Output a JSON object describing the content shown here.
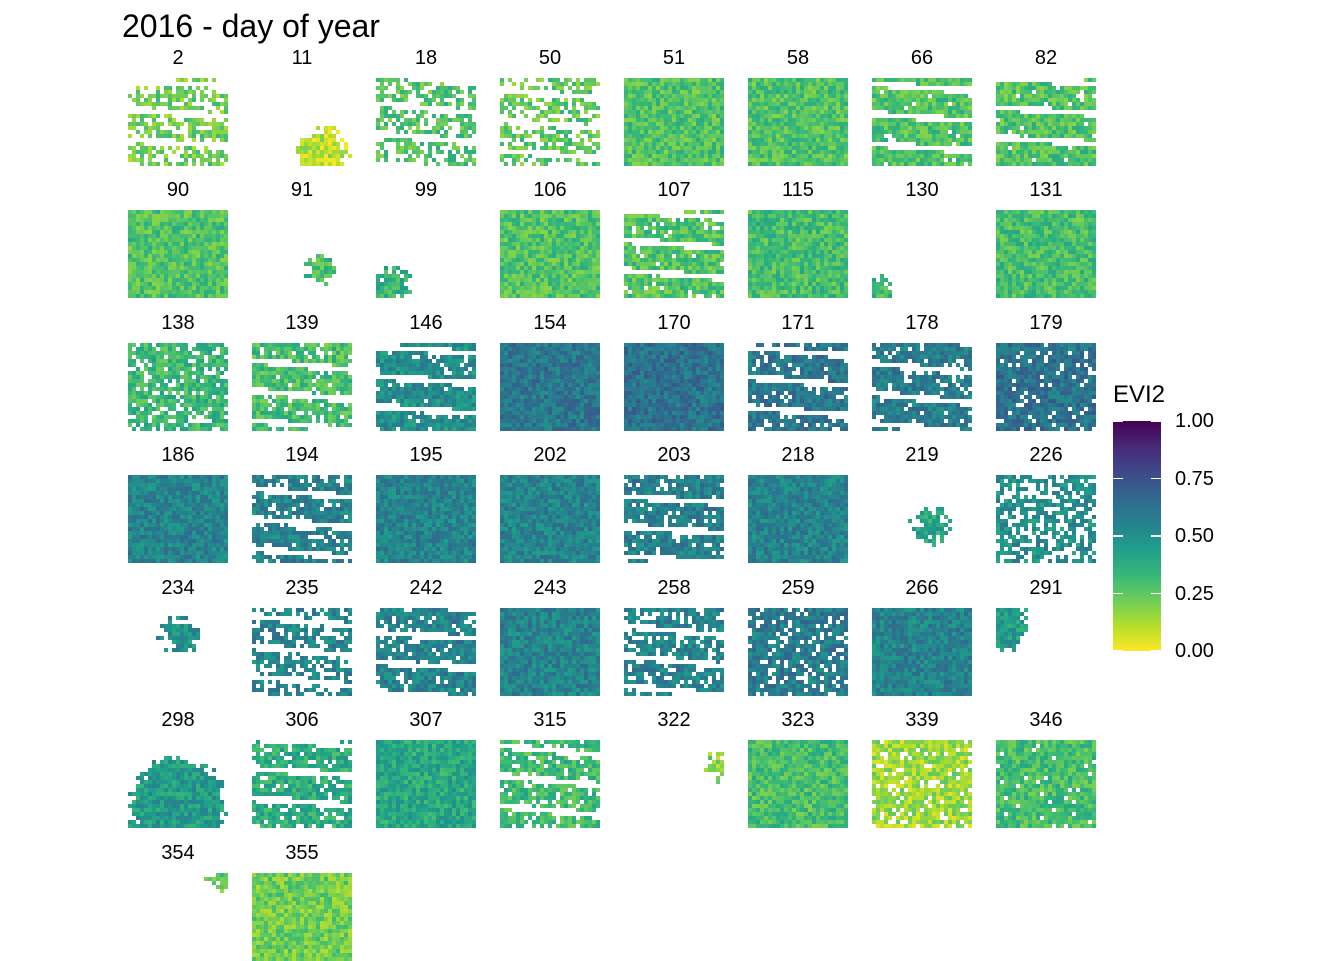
{
  "chart_data": {
    "type": "heatmap",
    "title": "2016 - day of year",
    "panels": [
      {
        "label": "2",
        "coverage": 0.55,
        "evi2": 0.22,
        "stripes": true
      },
      {
        "label": "11",
        "coverage": 0.12,
        "evi2": 0.1,
        "stripes": false
      },
      {
        "label": "18",
        "coverage": 0.6,
        "evi2": 0.28,
        "stripes": true
      },
      {
        "label": "50",
        "coverage": 0.55,
        "evi2": 0.25,
        "stripes": true
      },
      {
        "label": "51",
        "coverage": 1.0,
        "evi2": 0.28,
        "stripes": false
      },
      {
        "label": "58",
        "coverage": 1.0,
        "evi2": 0.28,
        "stripes": false
      },
      {
        "label": "66",
        "coverage": 0.9,
        "evi2": 0.28,
        "stripes": true
      },
      {
        "label": "82",
        "coverage": 0.9,
        "evi2": 0.28,
        "stripes": true
      },
      {
        "label": "90",
        "coverage": 1.0,
        "evi2": 0.28,
        "stripes": false
      },
      {
        "label": "91",
        "coverage": 0.03,
        "evi2": 0.3,
        "stripes": false
      },
      {
        "label": "99",
        "coverage": 0.06,
        "evi2": 0.35,
        "stripes": false
      },
      {
        "label": "106",
        "coverage": 1.0,
        "evi2": 0.28,
        "stripes": false
      },
      {
        "label": "107",
        "coverage": 0.85,
        "evi2": 0.28,
        "stripes": true
      },
      {
        "label": "115",
        "coverage": 1.0,
        "evi2": 0.3,
        "stripes": false
      },
      {
        "label": "130",
        "coverage": 0.05,
        "evi2": 0.32,
        "stripes": false
      },
      {
        "label": "131",
        "coverage": 1.0,
        "evi2": 0.3,
        "stripes": false
      },
      {
        "label": "138",
        "coverage": 0.75,
        "evi2": 0.33,
        "stripes": false
      },
      {
        "label": "139",
        "coverage": 0.8,
        "evi2": 0.3,
        "stripes": true
      },
      {
        "label": "146",
        "coverage": 0.85,
        "evi2": 0.5,
        "stripes": true
      },
      {
        "label": "154",
        "coverage": 1.0,
        "evi2": 0.6,
        "stripes": false
      },
      {
        "label": "170",
        "coverage": 1.0,
        "evi2": 0.62,
        "stripes": false
      },
      {
        "label": "171",
        "coverage": 0.8,
        "evi2": 0.6,
        "stripes": true
      },
      {
        "label": "178",
        "coverage": 0.8,
        "evi2": 0.58,
        "stripes": true
      },
      {
        "label": "179",
        "coverage": 0.85,
        "evi2": 0.62,
        "stripes": false
      },
      {
        "label": "186",
        "coverage": 1.0,
        "evi2": 0.55,
        "stripes": false
      },
      {
        "label": "194",
        "coverage": 0.75,
        "evi2": 0.55,
        "stripes": true
      },
      {
        "label": "195",
        "coverage": 1.0,
        "evi2": 0.55,
        "stripes": false
      },
      {
        "label": "202",
        "coverage": 1.0,
        "evi2": 0.55,
        "stripes": false
      },
      {
        "label": "203",
        "coverage": 0.8,
        "evi2": 0.57,
        "stripes": true
      },
      {
        "label": "218",
        "coverage": 1.0,
        "evi2": 0.55,
        "stripes": false
      },
      {
        "label": "219",
        "coverage": 0.05,
        "evi2": 0.4,
        "stripes": false
      },
      {
        "label": "226",
        "coverage": 0.55,
        "evi2": 0.5,
        "stripes": false
      },
      {
        "label": "234",
        "coverage": 0.06,
        "evi2": 0.5,
        "stripes": false
      },
      {
        "label": "235",
        "coverage": 0.6,
        "evi2": 0.55,
        "stripes": true
      },
      {
        "label": "242",
        "coverage": 0.8,
        "evi2": 0.55,
        "stripes": true
      },
      {
        "label": "243",
        "coverage": 1.0,
        "evi2": 0.55,
        "stripes": false
      },
      {
        "label": "258",
        "coverage": 0.75,
        "evi2": 0.55,
        "stripes": true
      },
      {
        "label": "259",
        "coverage": 0.75,
        "evi2": 0.58,
        "stripes": false
      },
      {
        "label": "266",
        "coverage": 1.0,
        "evi2": 0.55,
        "stripes": false
      },
      {
        "label": "291",
        "coverage": 0.12,
        "evi2": 0.45,
        "stripes": false
      },
      {
        "label": "298",
        "coverage": 0.45,
        "evi2": 0.45,
        "stripes": false
      },
      {
        "label": "306",
        "coverage": 0.8,
        "evi2": 0.38,
        "stripes": true
      },
      {
        "label": "307",
        "coverage": 1.0,
        "evi2": 0.4,
        "stripes": false
      },
      {
        "label": "315",
        "coverage": 0.8,
        "evi2": 0.32,
        "stripes": true
      },
      {
        "label": "322",
        "coverage": 0.03,
        "evi2": 0.2,
        "stripes": false
      },
      {
        "label": "323",
        "coverage": 1.0,
        "evi2": 0.3,
        "stripes": false
      },
      {
        "label": "339",
        "coverage": 0.8,
        "evi2": 0.15,
        "stripes": false
      },
      {
        "label": "346",
        "coverage": 0.9,
        "evi2": 0.3,
        "stripes": false
      },
      {
        "label": "354",
        "coverage": 0.04,
        "evi2": 0.25,
        "stripes": false
      },
      {
        "label": "355",
        "coverage": 1.0,
        "evi2": 0.22,
        "stripes": false
      }
    ],
    "legend": {
      "title": "EVI2",
      "min": 0.0,
      "max": 1.0,
      "ticks": [
        "0.00",
        "0.25",
        "0.50",
        "0.75",
        "1.00"
      ],
      "colorscale": [
        "#FDE725",
        "#B4DE2C",
        "#6DCD59",
        "#35B779",
        "#1F9E89",
        "#26828E",
        "#31688E",
        "#3E4A89",
        "#482878",
        "#440154"
      ]
    }
  }
}
